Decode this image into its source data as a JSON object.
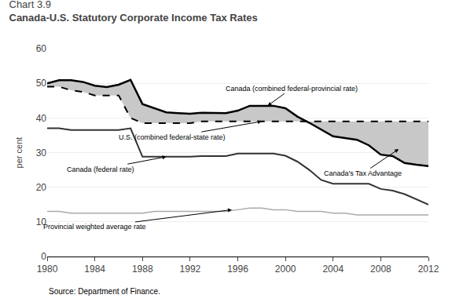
{
  "chart_data": {
    "type": "line",
    "subtitle": "Chart 3.9",
    "title": "Canada-U.S. Statutory Corporate Income Tax Rates",
    "ylabel": "per cent",
    "source": "Source: Department of Finance.",
    "xlim": [
      1980,
      2012
    ],
    "ylim": [
      0,
      60
    ],
    "xticks": [
      1980,
      1984,
      1988,
      1992,
      1996,
      2000,
      2004,
      2008,
      2012
    ],
    "yticks": [
      0,
      10,
      20,
      30,
      40,
      50,
      60
    ],
    "grid": true,
    "x": [
      1980,
      1981,
      1982,
      1983,
      1984,
      1985,
      1986,
      1987,
      1988,
      1989,
      1990,
      1991,
      1992,
      1993,
      1994,
      1995,
      1996,
      1997,
      1998,
      1999,
      2000,
      2001,
      2002,
      2003,
      2004,
      2005,
      2006,
      2007,
      2008,
      2009,
      2010,
      2011,
      2012
    ],
    "series": [
      {
        "color": "#aaaaaa",
        "line_style": "solid",
        "values": [
          13.0,
          13.0,
          12.5,
          12.5,
          12.5,
          12.5,
          12.5,
          12.5,
          12.5,
          13.0,
          13.0,
          13.0,
          13.0,
          13.0,
          13.0,
          13.0,
          13.5,
          14.0,
          14.0,
          13.5,
          13.5,
          13.0,
          13.0,
          13.0,
          12.5,
          12.5,
          12.0,
          12.0,
          12.0,
          12.0,
          12.0,
          12.0,
          12.0
        ]
      },
      {
        "color": "#333333",
        "line_style": "solid",
        "values": [
          37.0,
          37.0,
          36.5,
          36.5,
          36.5,
          36.5,
          36.5,
          37.0,
          28.8,
          28.8,
          28.8,
          28.8,
          28.8,
          29.0,
          29.0,
          29.0,
          29.7,
          29.7,
          29.7,
          29.7,
          29.1,
          27.4,
          25.0,
          22.1,
          21.0,
          21.0,
          21.0,
          21.0,
          19.5,
          19.0,
          18.0,
          16.5,
          15.0
        ]
      },
      {
        "color": "#000000",
        "line_style": "dashed",
        "values": [
          49.0,
          49.0,
          48.0,
          47.5,
          46.5,
          46.5,
          46.5,
          40.0,
          38.5,
          38.5,
          38.5,
          38.5,
          38.5,
          39.0,
          39.0,
          39.0,
          39.0,
          39.0,
          39.0,
          39.0,
          39.0,
          39.0,
          39.0,
          39.0,
          39.0,
          39.0,
          39.0,
          39.0,
          39.0,
          39.0,
          39.0,
          39.0,
          39.0
        ]
      },
      {
        "color": "#000000",
        "line_style": "solid",
        "values": [
          50.0,
          50.9,
          50.9,
          50.4,
          49.3,
          48.9,
          49.6,
          51.0,
          44.0,
          42.8,
          41.6,
          41.4,
          41.2,
          41.5,
          41.4,
          41.4,
          42.1,
          43.5,
          43.5,
          43.5,
          42.8,
          40.4,
          38.6,
          36.6,
          34.7,
          34.2,
          33.7,
          32.1,
          29.4,
          29.0,
          27.0,
          26.5,
          26.1
        ]
      }
    ],
    "fill_between": {
      "series": [
        3,
        2
      ],
      "color": "#c8c8c8"
    },
    "annotations": [
      {
        "text": "Canada (combined federal-provincial rate)",
        "x": 1998.5,
        "y": 43.5,
        "text_x": 2000.5,
        "text_y": 48.5
      },
      {
        "text": "U.S. (combined federal-state rate)",
        "x": 1998.0,
        "y": 39.0,
        "text_x": 1990.5,
        "text_y": 34.5
      },
      {
        "text": "Canada (federal rate)",
        "x": 1990.0,
        "y": 28.8,
        "text_x": 1984.5,
        "text_y": 25.2
      },
      {
        "text": "Provincial weighted average rate",
        "x": 1995.5,
        "y": 13.5,
        "text_x": 1984.0,
        "text_y": 8.5
      },
      {
        "text": "Canada's Tax Advantage",
        "x": 2009.5,
        "y": 31.0,
        "text_x": 2006.5,
        "text_y": 24.0
      }
    ]
  }
}
